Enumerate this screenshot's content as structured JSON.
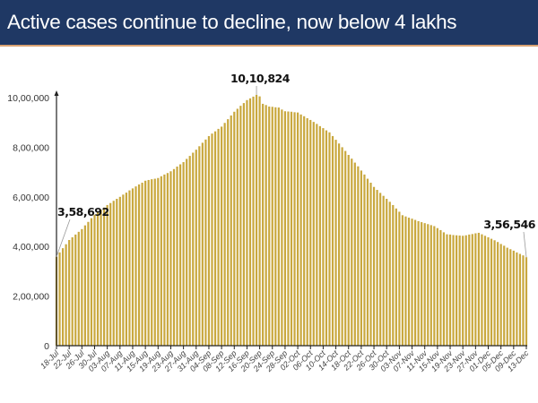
{
  "title": "Active cases continue to decline, now below 4 lakhs",
  "chart_data": {
    "type": "bar",
    "title": "Active cases continue to decline, now below 4 lakhs",
    "xlabel": "",
    "ylabel": "",
    "start_date": "18-Jul",
    "end_date": "13-Dec",
    "x_tick_labels": [
      "18-Jul",
      "22-Jul",
      "26-Jul",
      "30-Jul",
      "03-Aug",
      "07-Aug",
      "11-Aug",
      "15-Aug",
      "19-Aug",
      "23-Aug",
      "27-Aug",
      "31-Aug",
      "04-Sep",
      "08-Sep",
      "12-Sep",
      "16-Sep",
      "20-Sep",
      "24-Sep",
      "28-Sep",
      "02-Oct",
      "06-Oct",
      "10-Oct",
      "14-Oct",
      "18-Oct",
      "22-Oct",
      "26-Oct",
      "30-Oct",
      "03-Nov",
      "07-Nov",
      "11-Nov",
      "15-Nov",
      "19-Nov",
      "23-Nov",
      "27-Nov",
      "01-Dec",
      "05-Dec",
      "09-Dec",
      "13-Dec"
    ],
    "y_tick_labels": [
      "0",
      "2,00,000",
      "4,00,000",
      "6,00,000",
      "8,00,000",
      "10,00,000"
    ],
    "y_ticks": [
      0,
      200000,
      400000,
      600000,
      800000,
      1000000
    ],
    "ylim": [
      0,
      1000000
    ],
    "grid": false,
    "legend": "none",
    "bar_color": "#c9a83e",
    "values": [
      358692,
      376000,
      393000,
      409000,
      426000,
      437000,
      448000,
      459000,
      470000,
      485000,
      499000,
      514000,
      528000,
      538000,
      548000,
      557000,
      567000,
      575000,
      584000,
      592000,
      600000,
      609000,
      617000,
      626000,
      634000,
      642000,
      650000,
      657000,
      665000,
      668000,
      671000,
      673000,
      676000,
      683000,
      690000,
      696000,
      703000,
      712000,
      722000,
      731000,
      740000,
      753000,
      765000,
      778000,
      790000,
      804000,
      818000,
      831000,
      845000,
      855000,
      864000,
      874000,
      883000,
      898000,
      913000,
      928000,
      943000,
      955000,
      967000,
      978000,
      990000,
      997000,
      1004000,
      1010824,
      1005000,
      975000,
      970000,
      964000,
      963000,
      961000,
      960000,
      952000,
      945000,
      944000,
      943000,
      941000,
      940000,
      932000,
      925000,
      917000,
      910000,
      902000,
      894000,
      885000,
      877000,
      868000,
      860000,
      845000,
      830000,
      815000,
      800000,
      785000,
      769000,
      754000,
      738000,
      723000,
      706000,
      690000,
      673000,
      657000,
      640000,
      628000,
      616000,
      604000,
      592000,
      580000,
      567000,
      553000,
      540000,
      526000,
      521000,
      516000,
      512000,
      507000,
      502000,
      498000,
      494000,
      490000,
      486000,
      482000,
      474000,
      466000,
      457000,
      449000,
      448000,
      446000,
      445000,
      444000,
      443000,
      445000,
      448000,
      450000,
      453000,
      455000,
      449000,
      443000,
      437000,
      431000,
      425000,
      418000,
      410000,
      403000,
      395000,
      389000,
      383000,
      376000,
      370000,
      364000,
      356546
    ],
    "annotations": [
      {
        "text": "3,58,692",
        "date": "18-Jul",
        "value": 358692
      },
      {
        "text": "10,10,824",
        "value": 1010824
      },
      {
        "text": "3,56,546",
        "date": "13-Dec",
        "value": 356546
      }
    ]
  }
}
